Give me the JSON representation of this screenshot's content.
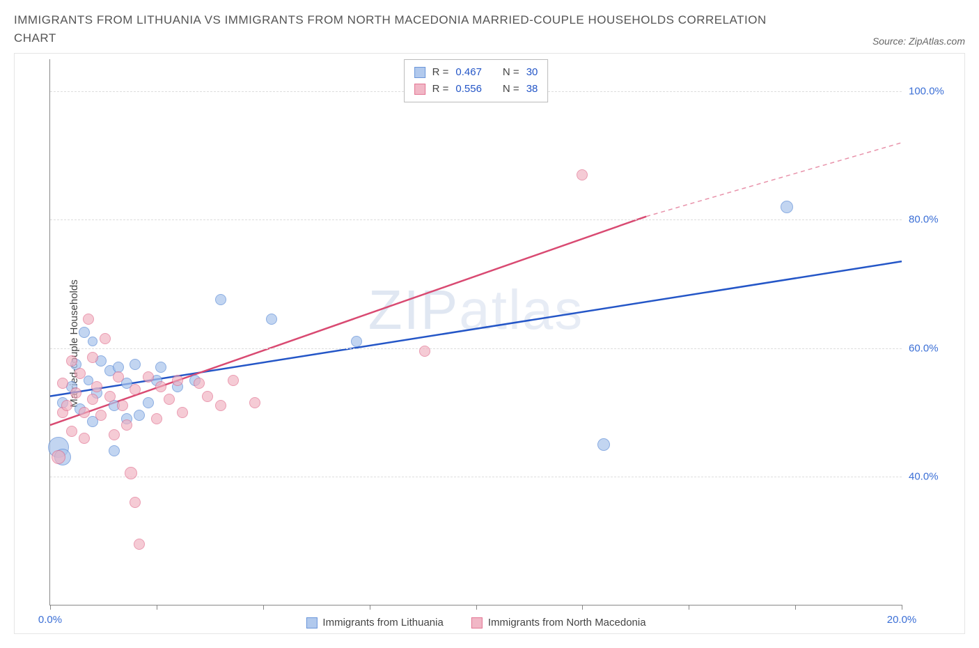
{
  "title": "IMMIGRANTS FROM LITHUANIA VS IMMIGRANTS FROM NORTH MACEDONIA MARRIED-COUPLE HOUSEHOLDS CORRELATION CHART",
  "source_label": "Source: ZipAtlas.com",
  "ylabel": "Married-couple Households",
  "watermark": "ZIPatlas",
  "chart": {
    "type": "scatter",
    "xlim": [
      0,
      20
    ],
    "ylim": [
      20,
      105
    ],
    "x_ticks": [
      0,
      2.5,
      5,
      7.5,
      10,
      12.5,
      15,
      17.5,
      20
    ],
    "x_tick_labels": {
      "0": "0.0%",
      "20": "20.0%"
    },
    "y_ticks": [
      40,
      60,
      80,
      100
    ],
    "y_tick_labels": [
      "40.0%",
      "60.0%",
      "80.0%",
      "100.0%"
    ],
    "grid_color": "#dddddd",
    "axis_color": "#888888",
    "background_color": "#ffffff",
    "label_color": "#3b6fd6"
  },
  "series": [
    {
      "id": "lithuania",
      "label": "Immigrants from Lithuania",
      "R": "0.467",
      "N": "30",
      "fill": "#a9c4ec",
      "stroke": "#5b8bd6",
      "fill_opacity": 0.45,
      "line_color": "#2456c7",
      "line_width": 2.5,
      "trend": {
        "x1": 0,
        "y1": 52.5,
        "x2": 20,
        "y2": 73.5
      },
      "points": [
        {
          "x": 0.2,
          "y": 44.5,
          "r": 15
        },
        {
          "x": 0.3,
          "y": 43.0,
          "r": 12
        },
        {
          "x": 0.3,
          "y": 51.5,
          "r": 8
        },
        {
          "x": 0.5,
          "y": 54.0,
          "r": 8
        },
        {
          "x": 0.6,
          "y": 57.5,
          "r": 8
        },
        {
          "x": 0.7,
          "y": 50.5,
          "r": 8
        },
        {
          "x": 0.8,
          "y": 62.5,
          "r": 8
        },
        {
          "x": 0.9,
          "y": 55.0,
          "r": 7
        },
        {
          "x": 1.0,
          "y": 48.5,
          "r": 8
        },
        {
          "x": 1.0,
          "y": 61.0,
          "r": 7
        },
        {
          "x": 1.1,
          "y": 53.0,
          "r": 8
        },
        {
          "x": 1.2,
          "y": 58.0,
          "r": 8
        },
        {
          "x": 1.4,
          "y": 56.5,
          "r": 8
        },
        {
          "x": 1.5,
          "y": 44.0,
          "r": 8
        },
        {
          "x": 1.5,
          "y": 51.0,
          "r": 8
        },
        {
          "x": 1.6,
          "y": 57.0,
          "r": 8
        },
        {
          "x": 1.8,
          "y": 49.0,
          "r": 8
        },
        {
          "x": 1.8,
          "y": 54.5,
          "r": 8
        },
        {
          "x": 2.0,
          "y": 57.5,
          "r": 8
        },
        {
          "x": 2.1,
          "y": 49.5,
          "r": 8
        },
        {
          "x": 2.3,
          "y": 51.5,
          "r": 8
        },
        {
          "x": 2.5,
          "y": 55.0,
          "r": 8
        },
        {
          "x": 2.6,
          "y": 57.0,
          "r": 8
        },
        {
          "x": 3.0,
          "y": 54.0,
          "r": 8
        },
        {
          "x": 3.4,
          "y": 55.0,
          "r": 8
        },
        {
          "x": 4.0,
          "y": 67.5,
          "r": 8
        },
        {
          "x": 5.2,
          "y": 64.5,
          "r": 8
        },
        {
          "x": 7.2,
          "y": 61.0,
          "r": 8
        },
        {
          "x": 13.0,
          "y": 45.0,
          "r": 9
        },
        {
          "x": 17.3,
          "y": 82.0,
          "r": 9
        }
      ]
    },
    {
      "id": "north_macedonia",
      "label": "Immigrants from North Macedonia",
      "R": "0.556",
      "N": "38",
      "fill": "#f0b0c0",
      "stroke": "#e06788",
      "fill_opacity": 0.4,
      "line_color": "#d94a72",
      "line_width": 2.5,
      "trend": {
        "x1": 0,
        "y1": 48.0,
        "x2": 14,
        "y2": 80.5
      },
      "trend_dashed": {
        "x1": 14,
        "y1": 80.5,
        "x2": 20,
        "y2": 92.0
      },
      "points": [
        {
          "x": 0.2,
          "y": 43.0,
          "r": 10
        },
        {
          "x": 0.3,
          "y": 50.0,
          "r": 8
        },
        {
          "x": 0.3,
          "y": 54.5,
          "r": 8
        },
        {
          "x": 0.4,
          "y": 51.0,
          "r": 8
        },
        {
          "x": 0.5,
          "y": 47.0,
          "r": 8
        },
        {
          "x": 0.5,
          "y": 58.0,
          "r": 8
        },
        {
          "x": 0.6,
          "y": 53.0,
          "r": 8
        },
        {
          "x": 0.7,
          "y": 56.0,
          "r": 8
        },
        {
          "x": 0.8,
          "y": 50.0,
          "r": 8
        },
        {
          "x": 0.8,
          "y": 46.0,
          "r": 8
        },
        {
          "x": 0.9,
          "y": 64.5,
          "r": 8
        },
        {
          "x": 1.0,
          "y": 52.0,
          "r": 8
        },
        {
          "x": 1.0,
          "y": 58.5,
          "r": 8
        },
        {
          "x": 1.1,
          "y": 54.0,
          "r": 8
        },
        {
          "x": 1.2,
          "y": 49.5,
          "r": 8
        },
        {
          "x": 1.3,
          "y": 61.5,
          "r": 8
        },
        {
          "x": 1.4,
          "y": 52.5,
          "r": 8
        },
        {
          "x": 1.5,
          "y": 46.5,
          "r": 8
        },
        {
          "x": 1.6,
          "y": 55.5,
          "r": 8
        },
        {
          "x": 1.7,
          "y": 51.0,
          "r": 8
        },
        {
          "x": 1.8,
          "y": 48.0,
          "r": 8
        },
        {
          "x": 1.9,
          "y": 40.5,
          "r": 9
        },
        {
          "x": 2.0,
          "y": 36.0,
          "r": 8
        },
        {
          "x": 2.0,
          "y": 53.5,
          "r": 8
        },
        {
          "x": 2.1,
          "y": 29.5,
          "r": 8
        },
        {
          "x": 2.3,
          "y": 55.5,
          "r": 8
        },
        {
          "x": 2.5,
          "y": 49.0,
          "r": 8
        },
        {
          "x": 2.6,
          "y": 54.0,
          "r": 8
        },
        {
          "x": 2.8,
          "y": 52.0,
          "r": 8
        },
        {
          "x": 3.0,
          "y": 55.0,
          "r": 8
        },
        {
          "x": 3.1,
          "y": 50.0,
          "r": 8
        },
        {
          "x": 3.5,
          "y": 54.5,
          "r": 8
        },
        {
          "x": 3.7,
          "y": 52.5,
          "r": 8
        },
        {
          "x": 4.0,
          "y": 51.0,
          "r": 8
        },
        {
          "x": 4.3,
          "y": 55.0,
          "r": 8
        },
        {
          "x": 4.8,
          "y": 51.5,
          "r": 8
        },
        {
          "x": 8.8,
          "y": 59.5,
          "r": 8
        },
        {
          "x": 12.5,
          "y": 87.0,
          "r": 8
        }
      ]
    }
  ]
}
